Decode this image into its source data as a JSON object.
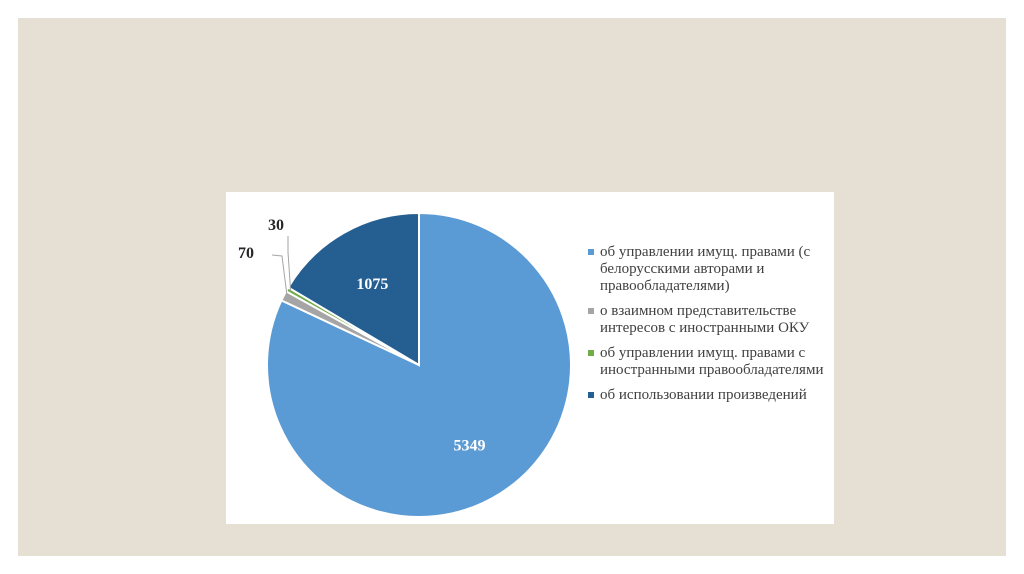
{
  "chart_data": {
    "type": "pie",
    "slices": [
      {
        "label": "об управлении имущ. правами (с белорусскими авторами и правообладателями)",
        "value": 5349,
        "color": "#5b9bd5",
        "value_label": "5349"
      },
      {
        "label": "о взаимном представительстве интересов с иностранными ОКУ",
        "value": 70,
        "color": "#a5a5a5",
        "value_label": "70"
      },
      {
        "label": "об управлении имущ. правами с иностранными правообладателями",
        "value": 30,
        "color": "#70ad47",
        "value_label": "30"
      },
      {
        "label": "об использовании произведений",
        "value": 1075,
        "color": "#255e91",
        "value_label": "1075"
      }
    ],
    "legend_position": "right"
  },
  "legend": [
    {
      "text": "об управлении имущ. правами (с белорусскими авторами и правообладателями)",
      "color": "#5b9bd5"
    },
    {
      "text": "о взаимном представительстве интересов с иностранными ОКУ",
      "color": "#a5a5a5"
    },
    {
      "text": "об управлении имущ. правами с иностранными правообладателями",
      "color": "#70ad47"
    },
    {
      "text": "об использовании произведений",
      "color": "#255e91"
    }
  ],
  "colors": {
    "slide_bg": "#e6dfd4",
    "panel_bg": "#ffffff",
    "label_dark": "#262626",
    "label_light": "#ffffff"
  }
}
